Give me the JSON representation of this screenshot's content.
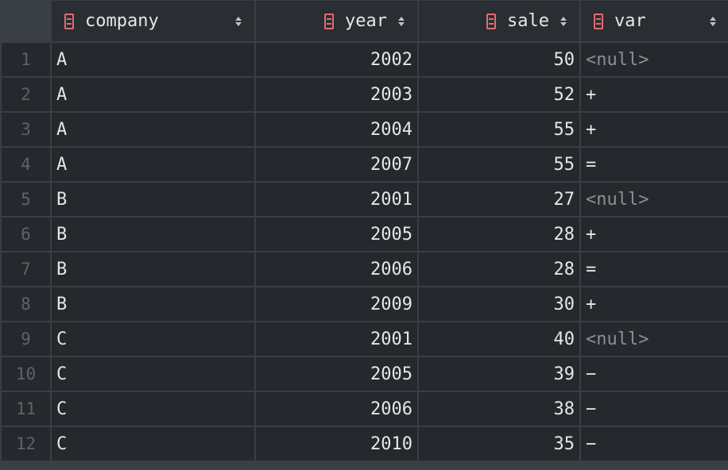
{
  "columns": [
    {
      "name": "company",
      "icon": "column-icon"
    },
    {
      "name": "year",
      "icon": "column-icon"
    },
    {
      "name": "sale",
      "icon": "column-icon"
    },
    {
      "name": "var",
      "icon": "column-icon"
    }
  ],
  "rows": [
    {
      "num": "1",
      "company": "A",
      "year": "2002",
      "sale": "50",
      "var": "<null>"
    },
    {
      "num": "2",
      "company": "A",
      "year": "2003",
      "sale": "52",
      "var": "+"
    },
    {
      "num": "3",
      "company": "A",
      "year": "2004",
      "sale": "55",
      "var": "+"
    },
    {
      "num": "4",
      "company": "A",
      "year": "2007",
      "sale": "55",
      "var": "="
    },
    {
      "num": "5",
      "company": "B",
      "year": "2001",
      "sale": "27",
      "var": "<null>"
    },
    {
      "num": "6",
      "company": "B",
      "year": "2005",
      "sale": "28",
      "var": "+"
    },
    {
      "num": "7",
      "company": "B",
      "year": "2006",
      "sale": "28",
      "var": "="
    },
    {
      "num": "8",
      "company": "B",
      "year": "2009",
      "sale": "30",
      "var": "+"
    },
    {
      "num": "9",
      "company": "C",
      "year": "2001",
      "sale": "40",
      "var": "<null>"
    },
    {
      "num": "10",
      "company": "C",
      "year": "2005",
      "sale": "39",
      "var": "−"
    },
    {
      "num": "11",
      "company": "C",
      "year": "2006",
      "sale": "38",
      "var": "−"
    },
    {
      "num": "12",
      "company": "C",
      "year": "2010",
      "sale": "35",
      "var": "−"
    }
  ],
  "colors": {
    "background": "#25282c",
    "text": "#e6e6e6",
    "null_text": "#8b9095",
    "row_number": "#5d6368",
    "column_icon": "#e06c75"
  }
}
